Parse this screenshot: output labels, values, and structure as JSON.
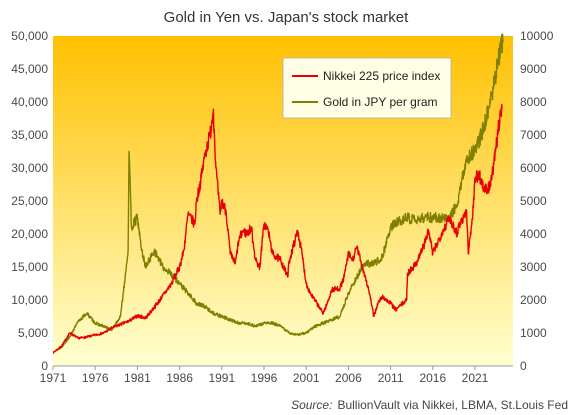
{
  "chart_data": {
    "type": "line",
    "title": "Gold in Yen vs. Japan's stock market",
    "source_label": "Source:",
    "source_text": "BullionVault via Nikkei, LBMA, St.Louis Fed",
    "x_ticks": [
      "1971",
      "1976",
      "1981",
      "1986",
      "1991",
      "1996",
      "2001",
      "2006",
      "2011",
      "2016",
      "2021"
    ],
    "xlim": [
      1971,
      2025.5
    ],
    "y_left": {
      "min": 0,
      "max": 50000,
      "ticks": [
        "0",
        "5,000",
        "10,000",
        "15,000",
        "20,000",
        "25,000",
        "30,000",
        "35,000",
        "40,000",
        "45,000",
        "50,000"
      ]
    },
    "y_right": {
      "min": 0,
      "max": 10000,
      "ticks": [
        "0",
        "1000",
        "2000",
        "3000",
        "4000",
        "5000",
        "6000",
        "7000",
        "8000",
        "9000",
        "10000"
      ]
    },
    "legend_placement": "top-right",
    "grid": false,
    "series": [
      {
        "name": "Nikkei 225 price index",
        "axis": "left",
        "color": "#e60000",
        "points": [
          [
            1971,
            2000
          ],
          [
            1972,
            3000
          ],
          [
            1973,
            5000
          ],
          [
            1974,
            4200
          ],
          [
            1975,
            4400
          ],
          [
            1976,
            4700
          ],
          [
            1977,
            5000
          ],
          [
            1978,
            5800
          ],
          [
            1979,
            6300
          ],
          [
            1980,
            6800
          ],
          [
            1981,
            7600
          ],
          [
            1982,
            7300
          ],
          [
            1983,
            8900
          ],
          [
            1984,
            10600
          ],
          [
            1985,
            12400
          ],
          [
            1986,
            15000
          ],
          [
            1986.5,
            17500
          ],
          [
            1987,
            23000
          ],
          [
            1987.8,
            21500
          ],
          [
            1988,
            25000
          ],
          [
            1988.5,
            28000
          ],
          [
            1989,
            32000
          ],
          [
            1989.6,
            35000
          ],
          [
            1990,
            38900
          ],
          [
            1990.3,
            30000
          ],
          [
            1990.8,
            23000
          ],
          [
            1991,
            25000
          ],
          [
            1991.5,
            23500
          ],
          [
            1992,
            17000
          ],
          [
            1992.6,
            15500
          ],
          [
            1993,
            19000
          ],
          [
            1993.5,
            20500
          ],
          [
            1994,
            20000
          ],
          [
            1994.5,
            21000
          ],
          [
            1995,
            16000
          ],
          [
            1995.5,
            15000
          ],
          [
            1996,
            21500
          ],
          [
            1996.5,
            20500
          ],
          [
            1997,
            17000
          ],
          [
            1998,
            16000
          ],
          [
            1998.8,
            13500
          ],
          [
            1999,
            16000
          ],
          [
            2000,
            20500
          ],
          [
            2000.5,
            17000
          ],
          [
            2001,
            12500
          ],
          [
            2001.5,
            11000
          ],
          [
            2002,
            10000
          ],
          [
            2003,
            8000
          ],
          [
            2003.5,
            9500
          ],
          [
            2004,
            11500
          ],
          [
            2005,
            11800
          ],
          [
            2005.5,
            13500
          ],
          [
            2006,
            17000
          ],
          [
            2006.5,
            16000
          ],
          [
            2007,
            18000
          ],
          [
            2008,
            13500
          ],
          [
            2008.5,
            11000
          ],
          [
            2009,
            7500
          ],
          [
            2009.5,
            9500
          ],
          [
            2010,
            10500
          ],
          [
            2011,
            9500
          ],
          [
            2011.6,
            8500
          ],
          [
            2012,
            9000
          ],
          [
            2012.9,
            10000
          ],
          [
            2013,
            14000
          ],
          [
            2014,
            15500
          ],
          [
            2015,
            18500
          ],
          [
            2015.5,
            20500
          ],
          [
            2016,
            17000
          ],
          [
            2017,
            20000
          ],
          [
            2018,
            22500
          ],
          [
            2018.9,
            20000
          ],
          [
            2019,
            21000
          ],
          [
            2020,
            23500
          ],
          [
            2020.2,
            17000
          ],
          [
            2020.8,
            24000
          ],
          [
            2021,
            28500
          ],
          [
            2021.5,
            29000
          ],
          [
            2022,
            27000
          ],
          [
            2022.5,
            26500
          ],
          [
            2023,
            28500
          ],
          [
            2023.5,
            33000
          ],
          [
            2024,
            38500
          ],
          [
            2024.2,
            39000
          ]
        ]
      },
      {
        "name": "Gold in JPY per gram",
        "axis": "right",
        "color": "#7f7f00",
        "points": [
          [
            1971,
            420
          ],
          [
            1972,
            560
          ],
          [
            1973,
            900
          ],
          [
            1974,
            1350
          ],
          [
            1975,
            1600
          ],
          [
            1976,
            1300
          ],
          [
            1977,
            1200
          ],
          [
            1978,
            1100
          ],
          [
            1979,
            1500
          ],
          [
            1979.9,
            3500
          ],
          [
            1980,
            6500
          ],
          [
            1980.3,
            4200
          ],
          [
            1981,
            4500
          ],
          [
            1981.5,
            3500
          ],
          [
            1982,
            3000
          ],
          [
            1983,
            3500
          ],
          [
            1984,
            3000
          ],
          [
            1985,
            2800
          ],
          [
            1986,
            2500
          ],
          [
            1987,
            2200
          ],
          [
            1988,
            1900
          ],
          [
            1989,
            1800
          ],
          [
            1990,
            1600
          ],
          [
            1991,
            1500
          ],
          [
            1992,
            1400
          ],
          [
            1993,
            1300
          ],
          [
            1994,
            1300
          ],
          [
            1995,
            1200
          ],
          [
            1996,
            1300
          ],
          [
            1997,
            1300
          ],
          [
            1998,
            1200
          ],
          [
            1999,
            1000
          ],
          [
            2000,
            950
          ],
          [
            2001,
            1000
          ],
          [
            2002,
            1200
          ],
          [
            2003,
            1300
          ],
          [
            2004,
            1400
          ],
          [
            2005,
            1500
          ],
          [
            2006,
            2200
          ],
          [
            2007,
            2700
          ],
          [
            2008,
            3100
          ],
          [
            2009,
            3100
          ],
          [
            2010,
            3300
          ],
          [
            2011,
            4200
          ],
          [
            2012,
            4400
          ],
          [
            2013,
            4500
          ],
          [
            2014,
            4400
          ],
          [
            2015,
            4500
          ],
          [
            2016,
            4500
          ],
          [
            2017,
            4500
          ],
          [
            2018,
            4500
          ],
          [
            2019,
            5000
          ],
          [
            2020,
            6300
          ],
          [
            2021,
            6500
          ],
          [
            2022,
            7200
          ],
          [
            2023,
            8200
          ],
          [
            2024,
            9600
          ],
          [
            2024.3,
            9800
          ]
        ]
      }
    ]
  }
}
